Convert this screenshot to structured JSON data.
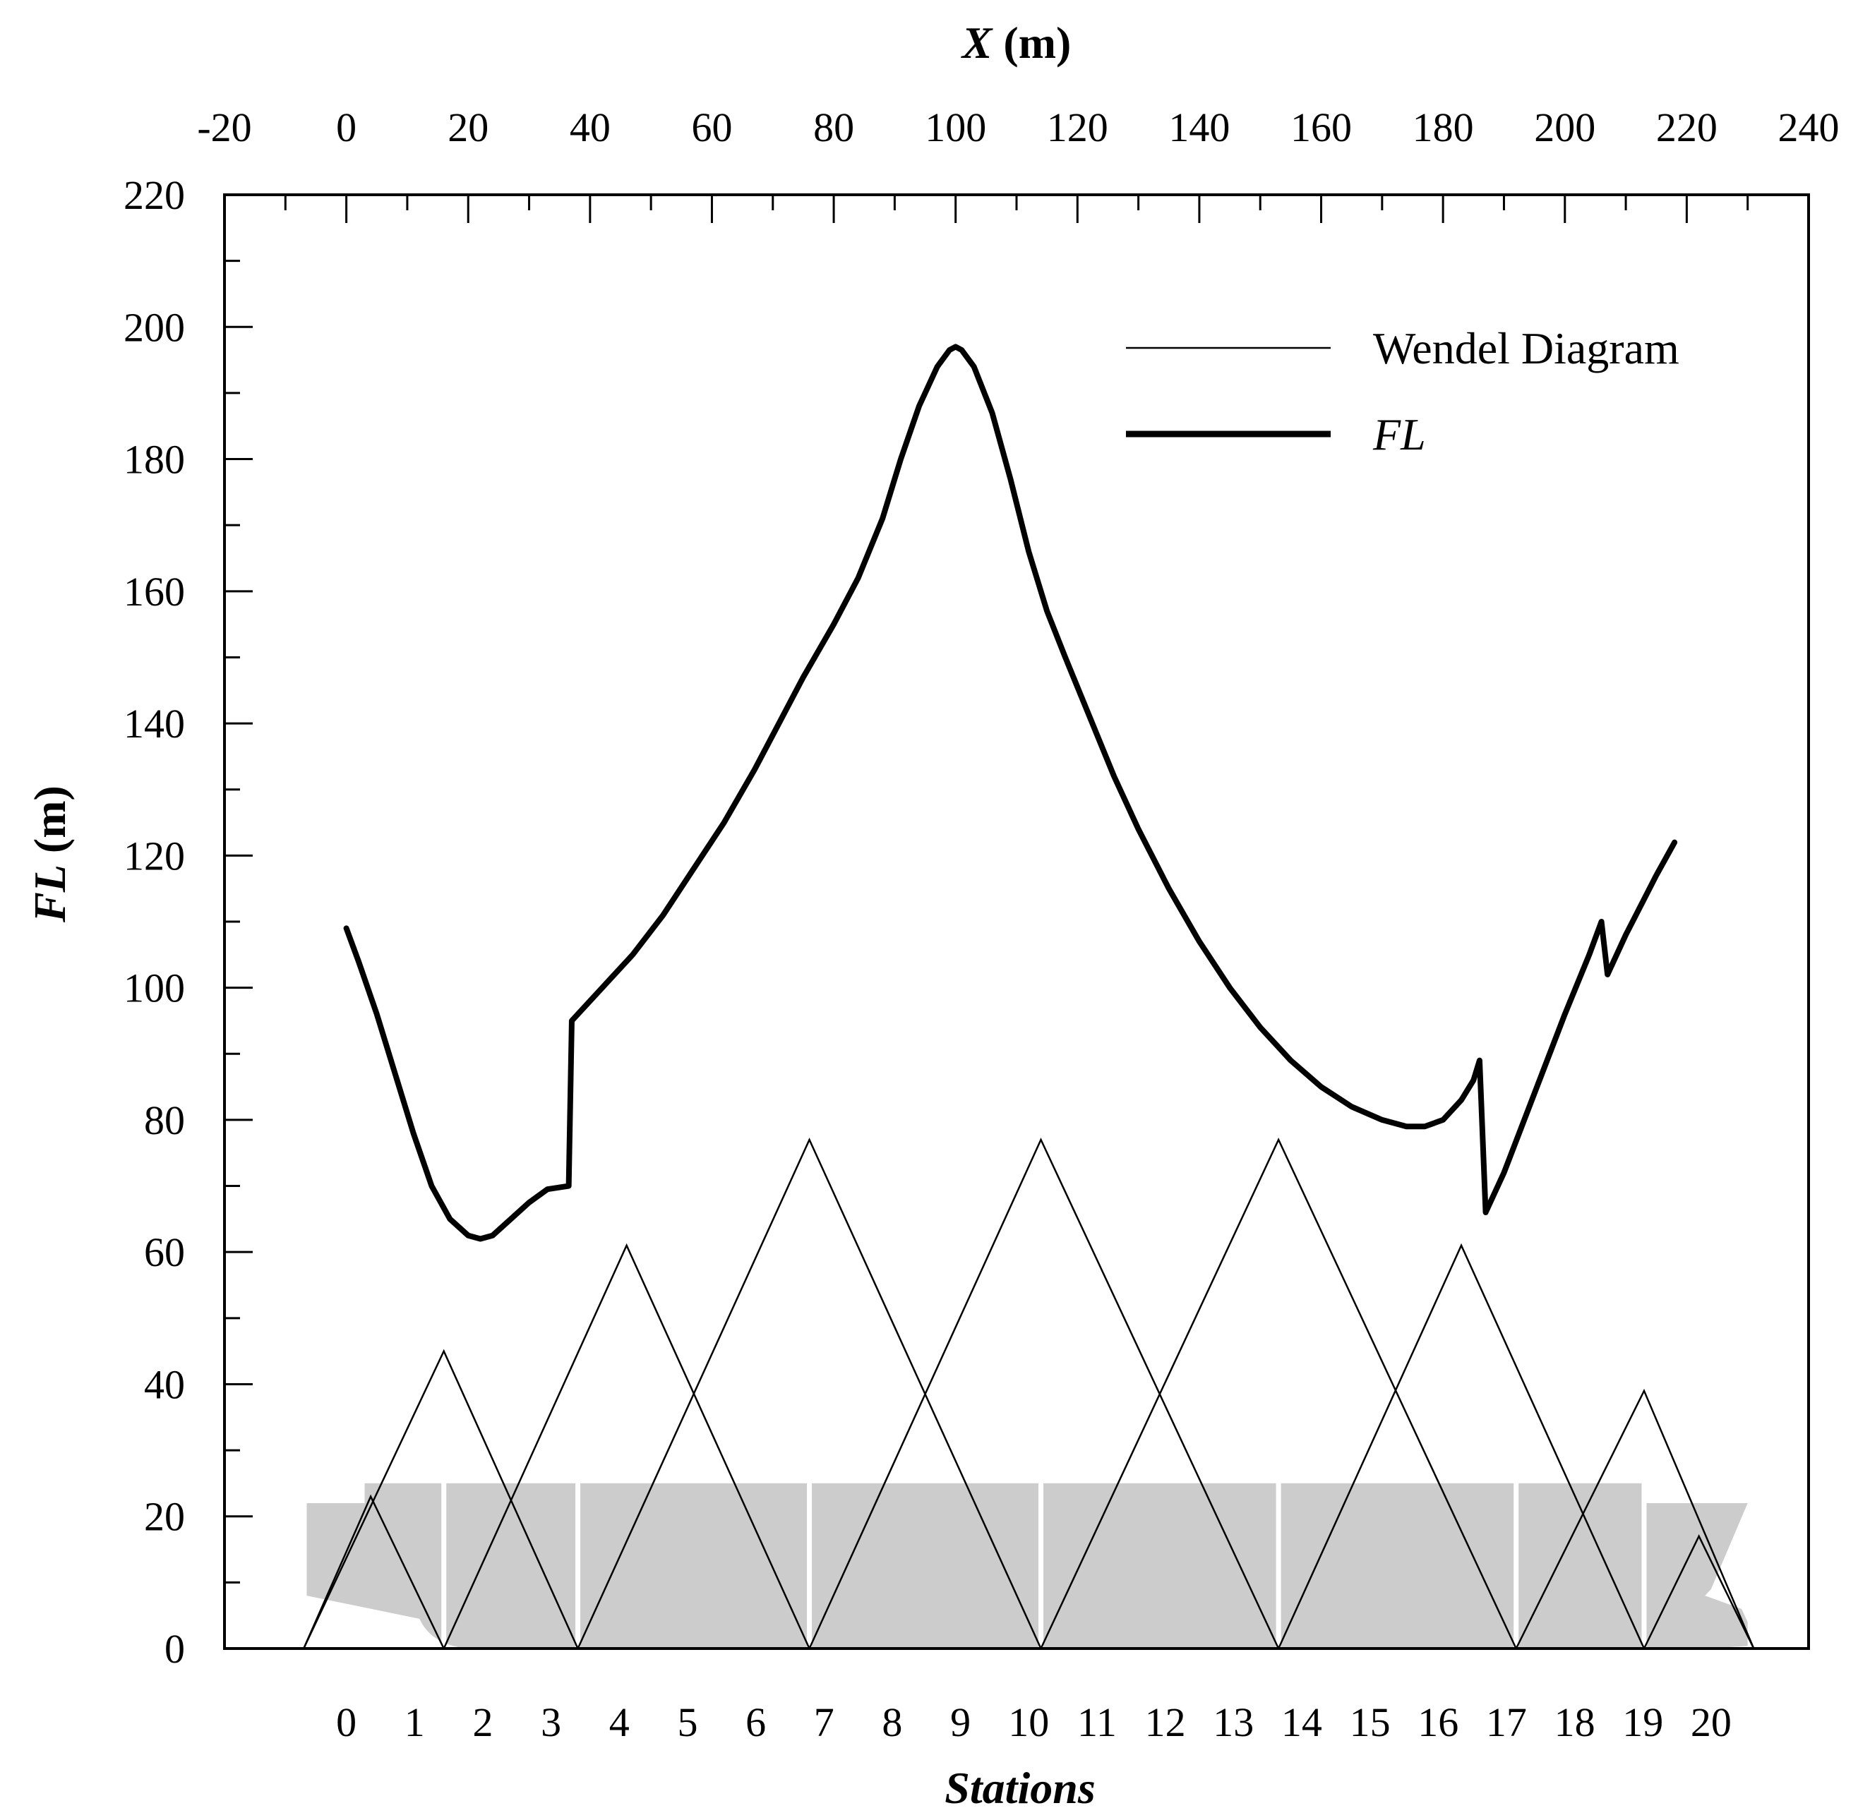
{
  "chart_data": {
    "type": "line",
    "top_axis": {
      "title_var": "X",
      "title_unit": " (m)",
      "range": [
        -20,
        240
      ],
      "ticks": [
        "-20",
        "0",
        "20",
        "40",
        "60",
        "80",
        "100",
        "120",
        "140",
        "160",
        "180",
        "200",
        "220",
        "240"
      ]
    },
    "left_axis": {
      "title_var": "FL",
      "title_unit": " (m)",
      "range": [
        0,
        220
      ],
      "ticks": [
        "0",
        "20",
        "40",
        "60",
        "80",
        "100",
        "120",
        "140",
        "160",
        "180",
        "200",
        "220"
      ]
    },
    "bottom_axis": {
      "title": "Stations",
      "labels": [
        {
          "text": "0",
          "x": 0
        },
        {
          "text": "1",
          "x": 11.2
        },
        {
          "text": "2",
          "x": 22.4
        },
        {
          "text": "3",
          "x": 33.6
        },
        {
          "text": "4",
          "x": 44.8
        },
        {
          "text": "5",
          "x": 56
        },
        {
          "text": "6",
          "x": 67.2
        },
        {
          "text": "7",
          "x": 78.4
        },
        {
          "text": "8",
          "x": 89.6
        },
        {
          "text": "9",
          "x": 100.8
        },
        {
          "text": "10",
          "x": 112
        },
        {
          "text": "11",
          "x": 123.2
        },
        {
          "text": "12",
          "x": 134.4
        },
        {
          "text": "13",
          "x": 145.6
        },
        {
          "text": "14",
          "x": 156.8
        },
        {
          "text": "15",
          "x": 168
        },
        {
          "text": "16",
          "x": 179.2
        },
        {
          "text": "17",
          "x": 190.4
        },
        {
          "text": "18",
          "x": 201.6
        },
        {
          "text": "19",
          "x": 212.8
        },
        {
          "text": "20",
          "x": 224
        }
      ]
    },
    "legend": {
      "position": "top-right",
      "entries": [
        {
          "label": "Wendel Diagram",
          "style": "thin",
          "italic": false
        },
        {
          "label": "FL",
          "style": "thick",
          "italic": true
        }
      ]
    },
    "series": [
      {
        "name": "FL",
        "style": "thick",
        "points": [
          [
            0,
            109
          ],
          [
            2,
            104
          ],
          [
            5,
            96
          ],
          [
            8,
            87
          ],
          [
            11,
            78
          ],
          [
            14,
            70
          ],
          [
            17,
            65
          ],
          [
            20,
            62.5
          ],
          [
            22,
            62
          ],
          [
            24,
            62.5
          ],
          [
            27,
            65
          ],
          [
            30,
            67.5
          ],
          [
            33,
            69.5
          ],
          [
            36.5,
            70
          ],
          [
            37,
            95
          ],
          [
            40,
            98
          ],
          [
            43,
            101
          ],
          [
            47,
            105
          ],
          [
            52,
            111
          ],
          [
            57,
            118
          ],
          [
            62,
            125
          ],
          [
            67,
            133
          ],
          [
            71,
            140
          ],
          [
            75,
            147
          ],
          [
            80,
            155
          ],
          [
            84,
            162
          ],
          [
            88,
            171
          ],
          [
            91,
            180
          ],
          [
            94,
            188
          ],
          [
            97,
            194
          ],
          [
            99,
            196.5
          ],
          [
            100,
            197
          ],
          [
            101,
            196.5
          ],
          [
            103,
            194
          ],
          [
            106,
            187
          ],
          [
            109,
            177
          ],
          [
            112,
            166
          ],
          [
            115,
            157
          ],
          [
            118,
            150
          ],
          [
            122,
            141
          ],
          [
            126,
            132
          ],
          [
            130,
            124
          ],
          [
            135,
            115
          ],
          [
            140,
            107
          ],
          [
            145,
            100
          ],
          [
            150,
            94
          ],
          [
            155,
            89
          ],
          [
            160,
            85
          ],
          [
            165,
            82
          ],
          [
            170,
            80
          ],
          [
            174,
            79
          ],
          [
            177,
            79
          ],
          [
            180,
            80
          ],
          [
            183,
            83
          ],
          [
            185,
            86
          ],
          [
            186,
            89
          ],
          [
            187,
            66
          ],
          [
            190,
            72
          ],
          [
            195,
            84
          ],
          [
            200,
            96
          ],
          [
            204,
            105
          ],
          [
            206,
            110
          ],
          [
            207,
            102
          ],
          [
            210,
            108
          ],
          [
            215,
            117
          ],
          [
            218,
            122
          ]
        ]
      },
      {
        "name": "Wendel Diagram",
        "style": "thin",
        "segments": [
          [
            [
              -7,
              0
            ],
            [
              4,
              23
            ],
            [
              16,
              0
            ]
          ],
          [
            [
              -7,
              0
            ],
            [
              16,
              45
            ],
            [
              38,
              0
            ]
          ],
          [
            [
              16,
              0
            ],
            [
              46,
              61
            ],
            [
              76,
              0
            ]
          ],
          [
            [
              38,
              0
            ],
            [
              76,
              77
            ],
            [
              114,
              0
            ]
          ],
          [
            [
              76,
              0
            ],
            [
              114,
              77
            ],
            [
              153,
              0
            ]
          ],
          [
            [
              114,
              0
            ],
            [
              153,
              77
            ],
            [
              192,
              0
            ]
          ],
          [
            [
              153,
              0
            ],
            [
              183,
              61
            ],
            [
              213,
              0
            ]
          ],
          [
            [
              192,
              0
            ],
            [
              213,
              39
            ],
            [
              231,
              0
            ]
          ],
          [
            [
              213,
              0
            ],
            [
              222,
              17
            ],
            [
              231,
              0
            ]
          ]
        ]
      }
    ],
    "ship_silhouette": {
      "fill": "#cccccc",
      "main_deck_y": 22,
      "raised_deck_y": 25,
      "raised_x_range": [
        3,
        213
      ],
      "bulkheads_x": [
        16,
        38,
        76,
        114,
        153,
        192,
        213
      ]
    }
  }
}
